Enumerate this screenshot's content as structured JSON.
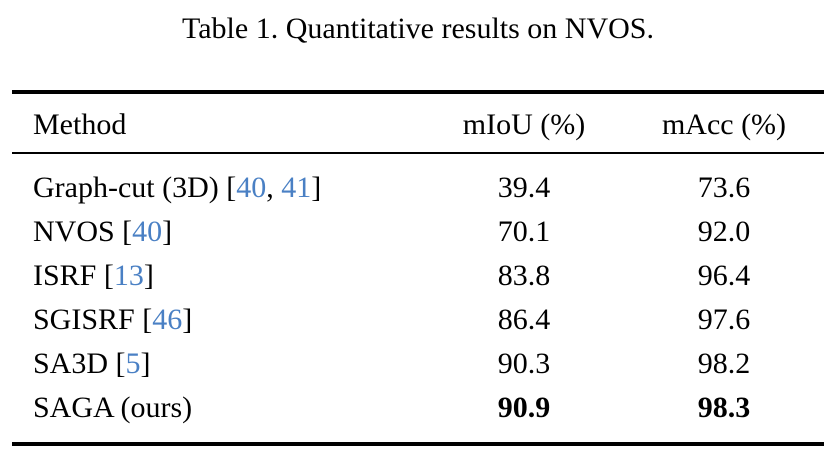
{
  "caption": "Table 1. Quantitative results on NVOS.",
  "colors": {
    "citation_link": "#4a80c4",
    "text": "#000000",
    "background": "#ffffff",
    "rule": "#000000"
  },
  "table": {
    "columns": [
      {
        "label": "Method",
        "align": "left"
      },
      {
        "label": "mIoU (%)",
        "align": "center"
      },
      {
        "label": "mAcc (%)",
        "align": "center"
      }
    ],
    "rows": [
      {
        "method": [
          {
            "text": "Graph-cut (3D) [",
            "cite": false
          },
          {
            "text": "40",
            "cite": true
          },
          {
            "text": ", ",
            "cite": false
          },
          {
            "text": "41",
            "cite": true
          },
          {
            "text": "]",
            "cite": false
          }
        ],
        "miou": "39.4",
        "macc": "73.6",
        "bold_values": false
      },
      {
        "method": [
          {
            "text": "NVOS [",
            "cite": false
          },
          {
            "text": "40",
            "cite": true
          },
          {
            "text": "]",
            "cite": false
          }
        ],
        "miou": "70.1",
        "macc": "92.0",
        "bold_values": false
      },
      {
        "method": [
          {
            "text": "ISRF [",
            "cite": false
          },
          {
            "text": "13",
            "cite": true
          },
          {
            "text": "]",
            "cite": false
          }
        ],
        "miou": "83.8",
        "macc": "96.4",
        "bold_values": false
      },
      {
        "method": [
          {
            "text": "SGISRF [",
            "cite": false
          },
          {
            "text": "46",
            "cite": true
          },
          {
            "text": "]",
            "cite": false
          }
        ],
        "miou": "86.4",
        "macc": "97.6",
        "bold_values": false
      },
      {
        "method": [
          {
            "text": "SA3D [",
            "cite": false
          },
          {
            "text": "5",
            "cite": true
          },
          {
            "text": "]",
            "cite": false
          }
        ],
        "miou": "90.3",
        "macc": "98.2",
        "bold_values": false
      },
      {
        "method": [
          {
            "text": "SAGA (ours)",
            "cite": false
          }
        ],
        "miou": "90.9",
        "macc": "98.3",
        "bold_values": true
      }
    ]
  }
}
